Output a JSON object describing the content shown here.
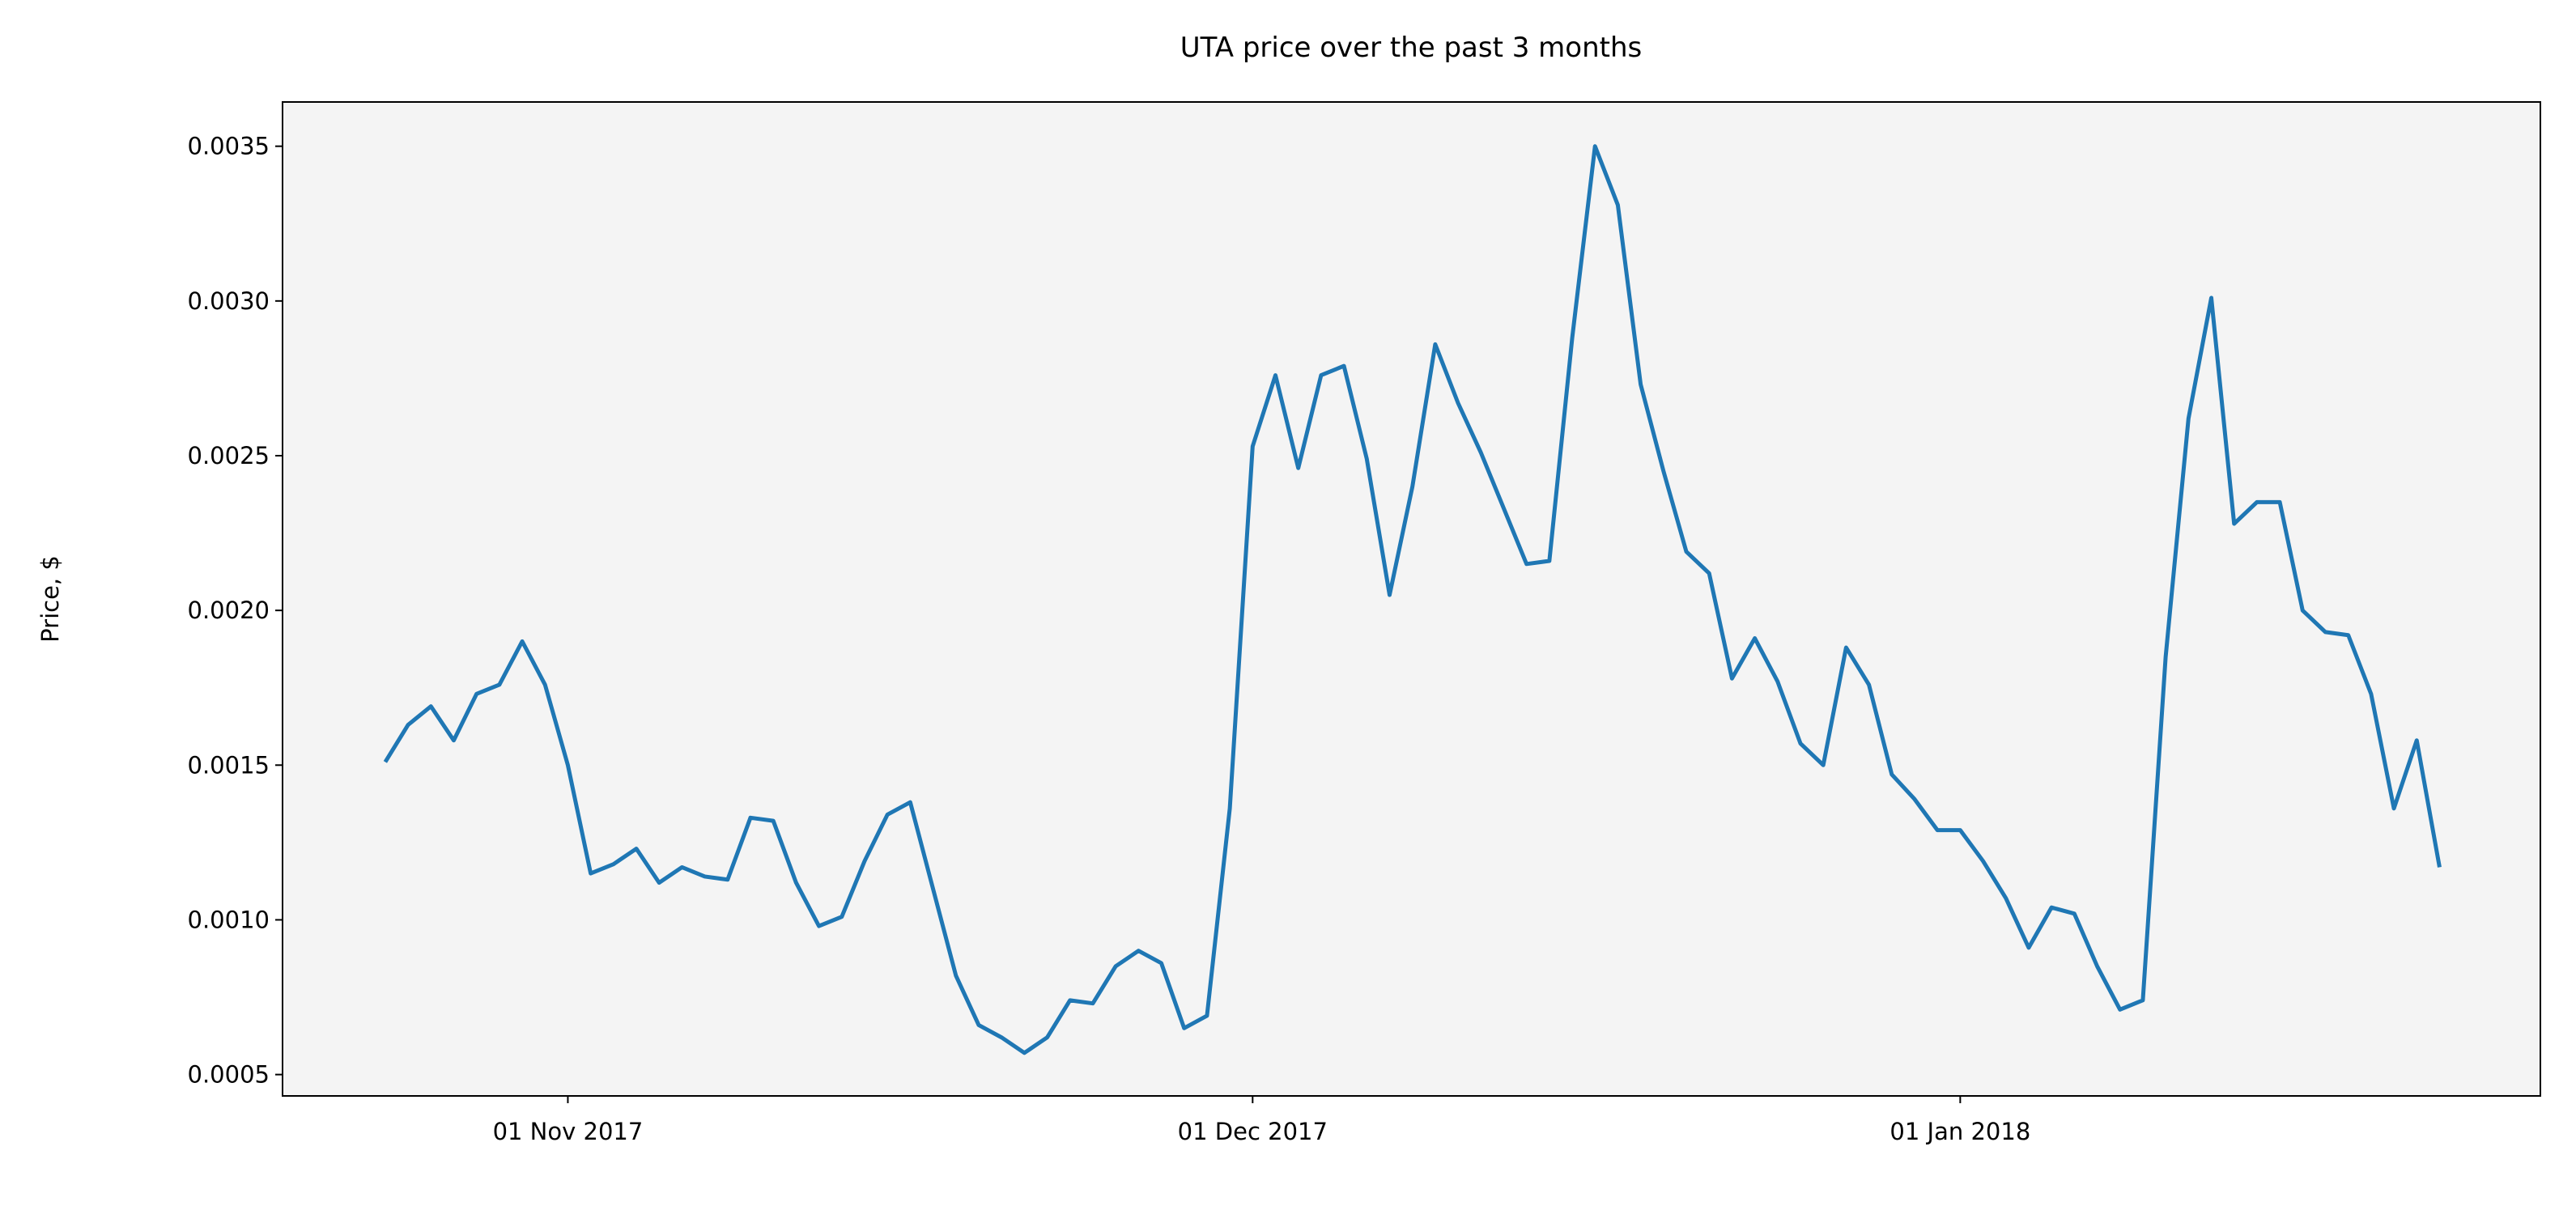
{
  "chart_data": {
    "type": "line",
    "title": "UTA price over the past 3 months",
    "y_label": "Price, $",
    "x": [
      "2017-10-24",
      "2017-10-25",
      "2017-10-26",
      "2017-10-27",
      "2017-10-28",
      "2017-10-29",
      "2017-10-30",
      "2017-10-31",
      "2017-11-01",
      "2017-11-02",
      "2017-11-03",
      "2017-11-04",
      "2017-11-05",
      "2017-11-06",
      "2017-11-07",
      "2017-11-08",
      "2017-11-09",
      "2017-11-10",
      "2017-11-11",
      "2017-11-12",
      "2017-11-13",
      "2017-11-14",
      "2017-11-15",
      "2017-11-16",
      "2017-11-17",
      "2017-11-18",
      "2017-11-19",
      "2017-11-20",
      "2017-11-21",
      "2017-11-22",
      "2017-11-23",
      "2017-11-24",
      "2017-11-25",
      "2017-11-26",
      "2017-11-27",
      "2017-11-28",
      "2017-11-29",
      "2017-11-30",
      "2017-12-01",
      "2017-12-02",
      "2017-12-03",
      "2017-12-04",
      "2017-12-05",
      "2017-12-06",
      "2017-12-07",
      "2017-12-08",
      "2017-12-09",
      "2017-12-10",
      "2017-12-11",
      "2017-12-12",
      "2017-12-13",
      "2017-12-14",
      "2017-12-15",
      "2017-12-16",
      "2017-12-17",
      "2017-12-18",
      "2017-12-19",
      "2017-12-20",
      "2017-12-21",
      "2017-12-22",
      "2017-12-23",
      "2017-12-24",
      "2017-12-25",
      "2017-12-26",
      "2017-12-27",
      "2017-12-28",
      "2017-12-29",
      "2017-12-30",
      "2017-12-31",
      "2018-01-01",
      "2018-01-02",
      "2018-01-03",
      "2018-01-04",
      "2018-01-05",
      "2018-01-06",
      "2018-01-07",
      "2018-01-08",
      "2018-01-09",
      "2018-01-10",
      "2018-01-11",
      "2018-01-12",
      "2018-01-13",
      "2018-01-14",
      "2018-01-15",
      "2018-01-16",
      "2018-01-17",
      "2018-01-18",
      "2018-01-19",
      "2018-01-20",
      "2018-01-21",
      "2018-01-22"
    ],
    "series": [
      {
        "name": "UTA",
        "color": "#1f77b4",
        "values": [
          0.00151,
          0.00163,
          0.00169,
          0.00158,
          0.00173,
          0.00176,
          0.0019,
          0.00176,
          0.0015,
          0.00115,
          0.00118,
          0.00123,
          0.00112,
          0.00117,
          0.00114,
          0.00113,
          0.00133,
          0.00132,
          0.00112,
          0.00098,
          0.00101,
          0.00119,
          0.00134,
          0.00138,
          0.0011,
          0.00082,
          0.00066,
          0.00062,
          0.00057,
          0.00062,
          0.00074,
          0.00073,
          0.00085,
          0.0009,
          0.00086,
          0.00065,
          0.00069,
          0.00136,
          0.00253,
          0.00276,
          0.00246,
          0.00276,
          0.00279,
          0.00249,
          0.00205,
          0.0024,
          0.00286,
          0.00267,
          0.00251,
          0.00233,
          0.00215,
          0.00216,
          0.00288,
          0.0035,
          0.00331,
          0.00273,
          0.00245,
          0.00219,
          0.00212,
          0.00178,
          0.00191,
          0.00177,
          0.00157,
          0.0015,
          0.00188,
          0.00176,
          0.00147,
          0.00139,
          0.00129,
          0.00129,
          0.00119,
          0.00107,
          0.00091,
          0.00104,
          0.00102,
          0.00085,
          0.00071,
          0.00074,
          0.00185,
          0.00262,
          0.00301,
          0.00228,
          0.00235,
          0.00235,
          0.002,
          0.00193,
          0.00192,
          0.00173,
          0.00136,
          0.00158,
          0.00117
        ]
      }
    ],
    "xlim": [
      "2017-10-19T12:00:00Z",
      "2018-01-26T10:00:00Z"
    ],
    "xticks": [
      {
        "value": "2017-11-01",
        "label": "01 Nov 2017"
      },
      {
        "value": "2017-12-01",
        "label": "01 Dec 2017"
      },
      {
        "value": "2018-01-01",
        "label": "01 Jan 2018"
      }
    ],
    "ylim": [
      0.000431,
      0.003643
    ],
    "yticks": [
      0.0005,
      {
        "value": 0.001,
        "label": "0.0010"
      },
      0.0015,
      {
        "value": 0.002,
        "label": "0.0020"
      },
      0.0025,
      {
        "value": 0.003,
        "label": "0.0030"
      },
      0.0035
    ],
    "plot_background": "#f4f4f4",
    "grid": false
  }
}
